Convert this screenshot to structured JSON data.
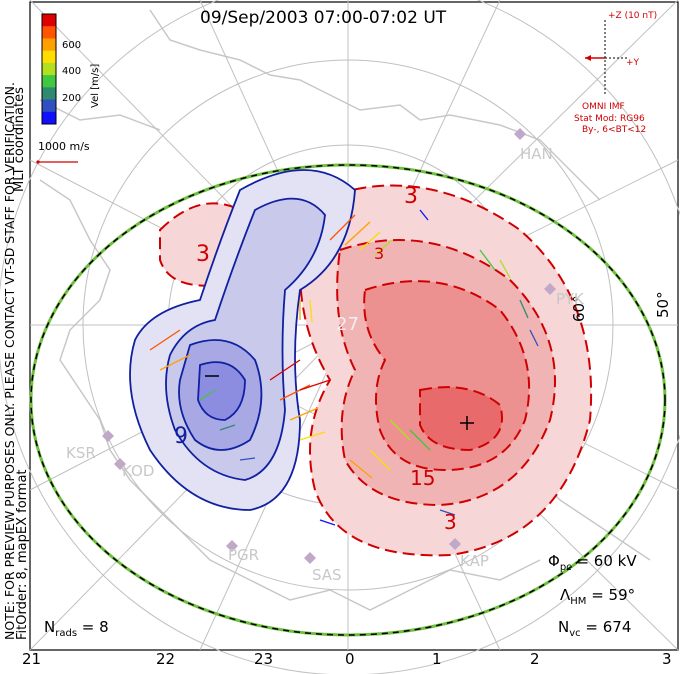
{
  "title": "09/Sep/2003 07:00-07:02 UT",
  "side_labels": {
    "coordinates": "MLT coordinates",
    "note": "NOTE: FOR PREVIEW PURPOSES ONLY. PLEASE CONTACT VT-SD STAFF FOR VERIFICATION.",
    "fit": "FitOrder: 8, mapEX format"
  },
  "colorbar": {
    "label": "Vel [m/s]",
    "ticks": [
      "600",
      "400",
      "200"
    ],
    "colors": [
      "#dd0000",
      "#ff5500",
      "#ffa000",
      "#ffdd00",
      "#b0e020",
      "#40c840",
      "#2e8b70",
      "#3050c0",
      "#1010ff"
    ]
  },
  "scale_vector": "1000 m/s",
  "imf": {
    "z_label": "+Z (10 nT)",
    "y_label": "+Y",
    "source": "OMNI IMF",
    "model": "Stat Mod: RG96",
    "condition": "By-, 6<BT<12"
  },
  "latitude_labels": [
    "60°",
    "50°"
  ],
  "contour_labels": [
    "3",
    "3",
    "9",
    "3",
    "15",
    "3",
    "27"
  ],
  "stations": [
    "HAN",
    "PYK",
    "KSR",
    "KOD",
    "PGR",
    "SAS",
    "KAP"
  ],
  "stats": {
    "phi_sym": "Φ",
    "phi_sub": "pc",
    "phi_val": " = 60 kV",
    "lam_sym": "Λ",
    "lam_sub": "HM",
    "lam_val": " = 59°",
    "nvc_sym": "N",
    "nvc_sub": "vc",
    "nvc_val": " = 674",
    "nrads_sym": "N",
    "nrads_sub": "rads",
    "nrads_val": " = 8"
  },
  "mlt_axis": [
    "21",
    "22",
    "23",
    "0",
    "1",
    "2",
    "3"
  ],
  "colors": {
    "positive_cell": "#d00000",
    "negative_cell": "#0000a0",
    "boundary_green": "#70c040"
  }
}
